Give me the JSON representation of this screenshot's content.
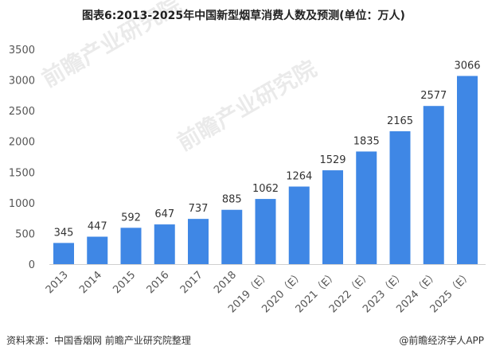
{
  "chart_data": {
    "type": "bar",
    "title": "图表6:2013-2025年中国新型烟草消费人数及预测(单位：万人)",
    "xlabel": "",
    "ylabel": "",
    "categories": [
      "2013",
      "2014",
      "2015",
      "2016",
      "2017",
      "2018",
      "2019（E）",
      "2020（E）",
      "2021（E）",
      "2022（E）",
      "2023（E）",
      "2024（E）",
      "2025（E）"
    ],
    "values": [
      345,
      447,
      592,
      647,
      737,
      885,
      1062,
      1264,
      1529,
      1835,
      2165,
      2577,
      3066
    ],
    "ylim": [
      0,
      3500
    ],
    "yticks": [
      0,
      500,
      1000,
      1500,
      2000,
      2500,
      3000,
      3500
    ],
    "grid": false,
    "bar_color": "#3f87e5"
  },
  "footer": {
    "source": "资料来源：中国香烟网 前瞻产业研究院整理",
    "credit": "@前瞻经济学人APP"
  },
  "watermark": "前瞻产业研究院"
}
